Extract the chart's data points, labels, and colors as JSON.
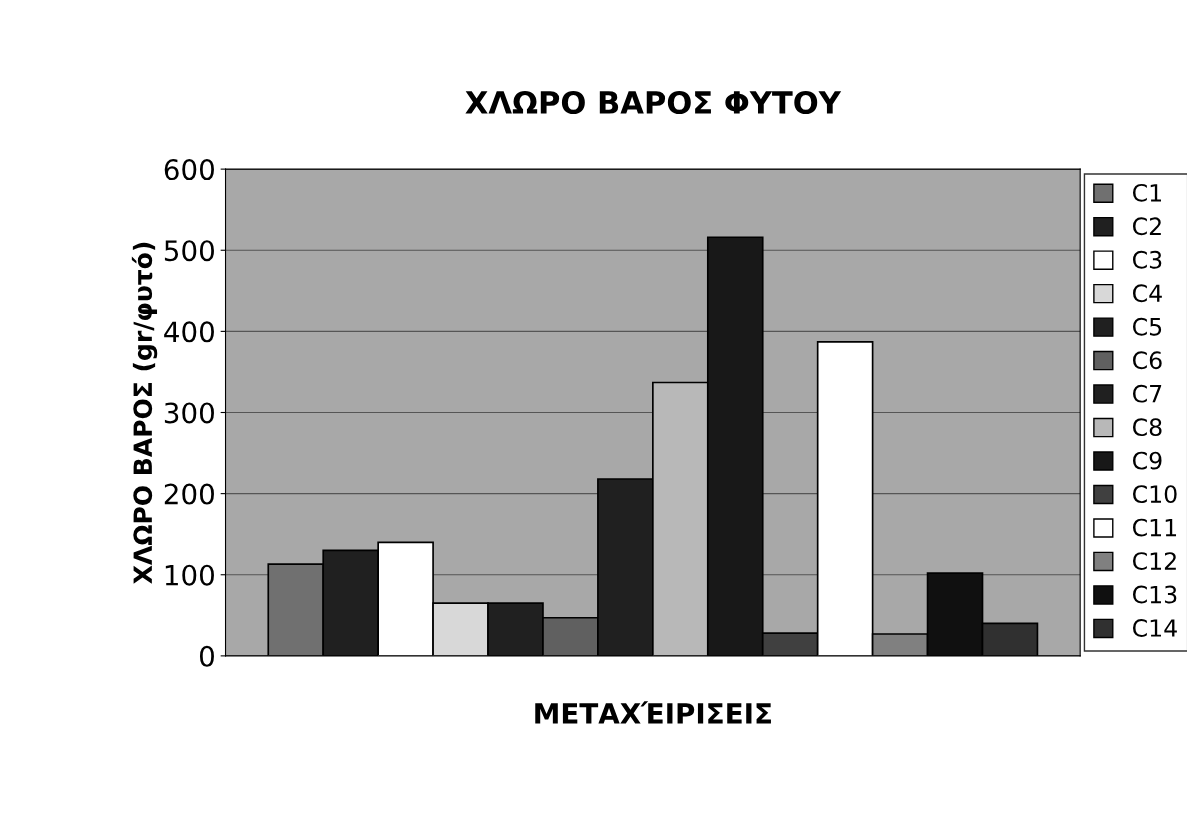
{
  "chart_data": {
    "type": "bar",
    "title": "ΧΛΩΡΟ ΒΑΡΟΣ ΦΥΤΟΥ",
    "xlabel": "ΜΕΤΑΧΈΙΡΙΣΕΙΣ",
    "ylabel": "ΧΛΩΡΟ ΒΑΡΟΣ (gr/φυτό)",
    "categories": [
      null
    ],
    "series": [
      {
        "name": "C1",
        "color": "#707070",
        "values": [
          113
        ]
      },
      {
        "name": "C2",
        "color": "#202020",
        "values": [
          130
        ]
      },
      {
        "name": "C3",
        "color": "#ffffff",
        "values": [
          140
        ]
      },
      {
        "name": "C4",
        "color": "#d8d8d8",
        "values": [
          65
        ]
      },
      {
        "name": "C5",
        "color": "#202020",
        "values": [
          65
        ]
      },
      {
        "name": "C6",
        "color": "#606060",
        "values": [
          47
        ]
      },
      {
        "name": "C7",
        "color": "#202020",
        "values": [
          218
        ]
      },
      {
        "name": "C8",
        "color": "#b8b8b8",
        "values": [
          337
        ]
      },
      {
        "name": "C9",
        "color": "#181818",
        "values": [
          516
        ]
      },
      {
        "name": "C10",
        "color": "#404040",
        "values": [
          28
        ]
      },
      {
        "name": "C11",
        "color": "#ffffff",
        "values": [
          387
        ]
      },
      {
        "name": "C12",
        "color": "#808080",
        "values": [
          27
        ]
      },
      {
        "name": "C13",
        "color": "#101010",
        "values": [
          102
        ]
      },
      {
        "name": "C14",
        "color": "#303030",
        "values": [
          40
        ]
      }
    ],
    "ylim": [
      0,
      600
    ],
    "yticks": [
      0,
      100,
      200,
      300,
      400,
      500,
      600
    ],
    "grid": "y",
    "legend": "right"
  }
}
